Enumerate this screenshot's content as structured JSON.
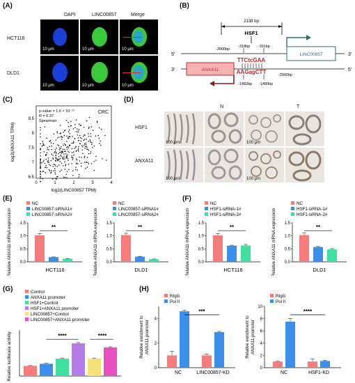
{
  "panels": {
    "A": {
      "label": "(A)",
      "columns": [
        "DAPI",
        "LINC00857",
        "Merge"
      ],
      "rows": [
        "HCT116",
        "DLD1"
      ],
      "scale": "10 μm",
      "colors": {
        "dapi": "#1a3fd6",
        "linc": "#39c93a"
      }
    },
    "B": {
      "label": "(B)",
      "span": "2138 bp",
      "tf": "HSF1",
      "five_prime": "5'",
      "three_prime": "3'",
      "upstream_left": "-2000bp",
      "upstream_right": "-2000bp",
      "pos1": "-318bp",
      "pos2": "-311bp",
      "pos3": "-1482bp",
      "pos4": "-1489bp",
      "seq_top": "TTCtcGAA",
      "seq_bottom": "AAGagCTT",
      "gene_top": "LINC00857",
      "gene_bottom": "ANXA11"
    },
    "C": {
      "label": "(C)",
      "tag": "CRC",
      "stats": [
        "p-value = 1.6 × 10⁻¹¹",
        "R = 0.37",
        "Spearman"
      ],
      "xlabel": "log2(LINC00857 TPM)",
      "ylabel": "log2(ANXA11 TPM)"
    },
    "D": {
      "label": "(D)",
      "groups": [
        "N",
        "T"
      ],
      "rows": [
        "HSF1",
        "ANXA11"
      ],
      "scale_left": "100 μm",
      "scale_right": "100 μm"
    },
    "E": {
      "label": "(E)",
      "ylabel": "Relative ANXA11 mRNA expression",
      "legend": [
        "NC",
        "LINC00857-siRNA1#",
        "LINC00857-siRNA2#"
      ],
      "sig": "**",
      "cells": [
        "HCT116",
        "DLD1"
      ]
    },
    "F": {
      "label": "(F)",
      "ylabel": "Relative ANXA11 mRNA expression",
      "legend": [
        "NC",
        "HSF1-siRNA-1#",
        "HSF1-siRNA-2#"
      ],
      "sig": "**",
      "cells": [
        "HCT116",
        "DLD1"
      ]
    },
    "G": {
      "label": "(G)",
      "ylabel": "Relative luciferase activity",
      "legend": [
        "Control",
        "ANXA11 promoter",
        "HSF1+Control",
        "HSF1+ANXA11 promoter",
        "LINC00857+Control",
        "LINC00857+ANXA11 promoter"
      ],
      "sig1": "****",
      "sig2": "****"
    },
    "H": {
      "label": "(H)",
      "ylabel": "Relative enrichment to ANXA11 promoter",
      "legend": [
        "RIgG",
        "Pol II"
      ],
      "sig1": "***",
      "sig2": "****",
      "cats_left": [
        "NC",
        "LINC00857-KD"
      ],
      "cats_right": [
        "NC",
        "HSF1-KD"
      ]
    }
  },
  "colors": {
    "red": "#f47c7c",
    "blue": "#3b8fe8",
    "green": "#3fe0a0",
    "purple": "#b57be8",
    "magenta": "#e84fc0",
    "yellow": "#f5e07a",
    "dark_red": "#c0272d",
    "anxa_fill": "#f7b3b3",
    "teal": "#2e6d74"
  },
  "chart_data": [
    {
      "type": "bar",
      "id": "E-HCT116",
      "xlabel": "HCT116",
      "ylabel": "Relative ANXA11 mRNA expression",
      "ylim": [
        0,
        1.5
      ],
      "yticks": [
        0.0,
        0.5,
        1.0,
        1.5
      ],
      "series": [
        {
          "name": "NC",
          "values": [
            1.02
          ],
          "err": [
            0.07
          ]
        },
        {
          "name": "LINC00857-siRNA1#",
          "values": [
            0.18
          ],
          "err": [
            0.01
          ]
        },
        {
          "name": "LINC00857-siRNA2#",
          "values": [
            0.12
          ],
          "err": [
            0.01
          ]
        }
      ]
    },
    {
      "type": "bar",
      "id": "E-DLD1",
      "xlabel": "DLD1",
      "ylabel": "Relative ANXA11 mRNA expression",
      "ylim": [
        0,
        1.5
      ],
      "yticks": [
        0.0,
        0.5,
        1.0,
        1.5
      ],
      "series": [
        {
          "name": "NC",
          "values": [
            1.03
          ],
          "err": [
            0.07
          ]
        },
        {
          "name": "LINC00857-siRNA1#",
          "values": [
            0.2
          ],
          "err": [
            0.01
          ]
        },
        {
          "name": "LINC00857-siRNA2#",
          "values": [
            0.1
          ],
          "err": [
            0.01
          ]
        }
      ]
    },
    {
      "type": "bar",
      "id": "F-HCT116",
      "xlabel": "HCT116",
      "ylabel": "Relative ANXA11 mRNA expression",
      "ylim": [
        0,
        1.5
      ],
      "yticks": [
        0.0,
        0.5,
        1.0,
        1.5
      ],
      "series": [
        {
          "name": "NC",
          "values": [
            1.02
          ],
          "err": [
            0.07
          ]
        },
        {
          "name": "HSF1-siRNA-1#",
          "values": [
            0.62
          ],
          "err": [
            0.02
          ]
        },
        {
          "name": "HSF1-siRNA-2#",
          "values": [
            0.63
          ],
          "err": [
            0.04
          ]
        }
      ]
    },
    {
      "type": "bar",
      "id": "F-DLD1",
      "xlabel": "DLD1",
      "ylabel": "Relative ANXA11 mRNA expression",
      "ylim": [
        0,
        1.5
      ],
      "yticks": [
        0.0,
        0.5,
        1.0,
        1.5
      ],
      "series": [
        {
          "name": "NC",
          "values": [
            1.03
          ],
          "err": [
            0.08
          ]
        },
        {
          "name": "HSF1-siRNA-1#",
          "values": [
            0.57
          ],
          "err": [
            0.02
          ]
        },
        {
          "name": "HSF1-siRNA-2#",
          "values": [
            0.48
          ],
          "err": [
            0.03
          ]
        }
      ]
    },
    {
      "type": "bar",
      "id": "G",
      "ylabel": "Relative luciferase activity",
      "ylim": [
        0,
        4.5
      ],
      "categories": [
        "Control",
        "ANXA11 promoter",
        "HSF1+Control",
        "HSF1+ANXA11 promoter",
        "LINC00857+Control",
        "LINC00857+ANXA11 promoter"
      ],
      "values": [
        1.0,
        1.2,
        1.7,
        3.2,
        1.7,
        2.8
      ],
      "err": [
        0.03,
        0.05,
        0.06,
        0.08,
        0.06,
        0.06
      ]
    },
    {
      "type": "bar",
      "id": "H-left",
      "ylabel": "Relative enrichment to ANXA11 promoter",
      "ylim": [
        0,
        5
      ],
      "yticks": [
        0,
        2,
        4
      ],
      "categories": [
        "NC",
        "LINC00857-KD"
      ],
      "series": [
        {
          "name": "RIgG",
          "values": [
            1.0,
            1.0
          ],
          "err": [
            0.35,
            0.1
          ]
        },
        {
          "name": "Pol II",
          "values": [
            4.6,
            2.9
          ],
          "err": [
            0.1,
            0.06
          ]
        }
      ]
    },
    {
      "type": "bar",
      "id": "H-right",
      "ylabel": "Relative enrichment to ANXA11 promoter",
      "ylim": [
        0,
        10
      ],
      "yticks": [
        0,
        2,
        4,
        6,
        8,
        10
      ],
      "categories": [
        "NC",
        "HSF1-KD"
      ],
      "series": [
        {
          "name": "RIgG",
          "values": [
            1.0,
            1.0
          ],
          "err": [
            0.05,
            0.4
          ]
        },
        {
          "name": "Pol II",
          "values": [
            7.5,
            1.1
          ],
          "err": [
            0.5,
            0.1
          ]
        }
      ]
    }
  ]
}
